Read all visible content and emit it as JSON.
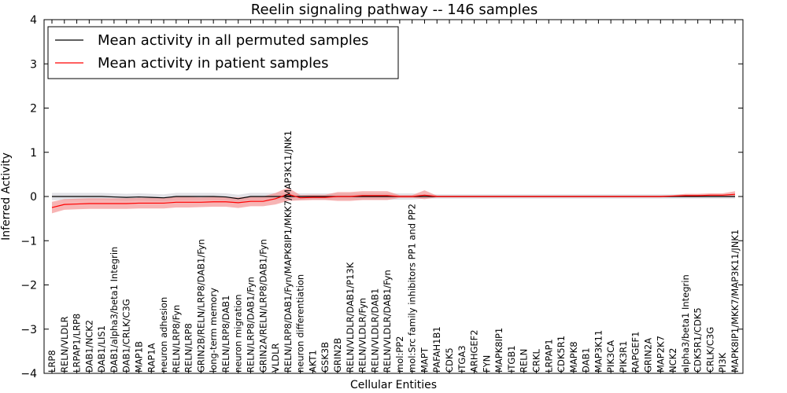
{
  "chart_data": {
    "type": "line",
    "title": "Reelin signaling pathway -- 146 samples",
    "xlabel": "Cellular Entities",
    "ylabel": "Inferred Activity",
    "ylim": [
      -4,
      4
    ],
    "yticks": [
      -4,
      -3,
      -2,
      -1,
      0,
      1,
      2,
      3,
      4
    ],
    "ytick_labels": [
      "−4",
      "−3",
      "−2",
      "−1",
      "0",
      "1",
      "2",
      "3",
      "4"
    ],
    "legend_position": "top-left",
    "categories": [
      "LRP8",
      "RELN/VLDLR",
      "LRPAP1/LRP8",
      "DAB1/NCK2",
      "DAB1/LIS1",
      "DAB1/alpha3/beta1 Integrin",
      "DAB1/CRLK/C3G",
      "MAP1B",
      "RAP1A",
      "neuron adhesion",
      "RELN/LRP8/Fyn",
      "RELN/LRP8",
      "GRIN2B/RELN/LRP8/DAB1/Fyn",
      "long-term memory",
      "RELN/LRP8/DAB1",
      "neuron migration",
      "RELN/LRP8/DAB1/Fyn",
      "GRIN2A/RELN/LRP8/DAB1/Fyn",
      "VLDLR",
      "RELN/LRP8/DAB1/Fyn/MAPK8IP1/MKK7/MAP3K11/JNK1",
      "neuron differentiation",
      "AKT1",
      "GSK3B",
      "GRIN2B",
      "RELN/VLDLR/DAB1/P13K",
      "RELN/VLDLR/Fyn",
      "RELN/VLDLR/DAB1",
      "RELN/VLDLR/DAB1/Fyn",
      "mol:PP2",
      "mol:Src family inhibitors PP1 and PP2",
      "MAPT",
      "PAFAH1B1",
      "CDK5",
      "ITGA3",
      "ARHGEF2",
      "FYN",
      "MAPK8IP1",
      "ITGB1",
      "RELN",
      "CRKL",
      "LRPAP1",
      "CDK5R1",
      "MAPK8",
      "DAB1",
      "MAP3K11",
      "PIK3CA",
      "PIK3R1",
      "RAPGEF1",
      "GRIN2A",
      "MAP2K7",
      "NCK2",
      "alpha3/beta1 Integrin",
      "CDK5R1/CDK5",
      "CRLK/C3G",
      "PI3K",
      "MAPK8IP1/MKK7/MAP3K11/JNK1"
    ],
    "series": [
      {
        "name": "Mean activity in all permuted samples",
        "color": "#000000",
        "band_color": "#c8c8d2",
        "values": [
          0,
          0,
          0,
          0,
          0,
          -0.01,
          -0.02,
          -0.01,
          -0.02,
          -0.03,
          0,
          0,
          0,
          0,
          -0.01,
          -0.05,
          0,
          0,
          0,
          0,
          0,
          0,
          0,
          0,
          0,
          0,
          0,
          0,
          0,
          0,
          0,
          0,
          0,
          0,
          0,
          0,
          0,
          0,
          0,
          0,
          0,
          0,
          0,
          0,
          0,
          0,
          0,
          0,
          0,
          0,
          0,
          0,
          0,
          0,
          0,
          0
        ],
        "lower": [
          -0.08,
          -0.08,
          -0.08,
          -0.08,
          -0.08,
          -0.09,
          -0.1,
          -0.09,
          -0.1,
          -0.11,
          -0.08,
          -0.08,
          -0.08,
          -0.08,
          -0.09,
          -0.12,
          -0.08,
          -0.08,
          -0.08,
          -0.08,
          -0.07,
          -0.07,
          -0.07,
          -0.07,
          -0.07,
          -0.07,
          -0.07,
          -0.07,
          -0.07,
          -0.07,
          -0.05,
          -0.05,
          -0.05,
          -0.05,
          -0.05,
          -0.05,
          -0.05,
          -0.05,
          -0.05,
          -0.05,
          -0.05,
          -0.05,
          -0.05,
          -0.05,
          -0.05,
          -0.05,
          -0.05,
          -0.05,
          -0.05,
          -0.05,
          -0.05,
          -0.05,
          -0.05,
          -0.05,
          -0.05,
          -0.05
        ],
        "upper": [
          0.08,
          0.08,
          0.08,
          0.08,
          0.08,
          0.07,
          0.06,
          0.07,
          0.06,
          0.05,
          0.08,
          0.08,
          0.08,
          0.08,
          0.07,
          0.04,
          0.08,
          0.08,
          0.08,
          0.08,
          0.07,
          0.07,
          0.07,
          0.07,
          0.07,
          0.07,
          0.07,
          0.07,
          0.07,
          0.07,
          0.05,
          0.05,
          0.05,
          0.05,
          0.05,
          0.05,
          0.05,
          0.05,
          0.05,
          0.05,
          0.05,
          0.05,
          0.05,
          0.05,
          0.05,
          0.05,
          0.05,
          0.05,
          0.05,
          0.05,
          0.05,
          0.05,
          0.05,
          0.05,
          0.05,
          0.05
        ]
      },
      {
        "name": "Mean activity in patient samples",
        "color": "#ff0000",
        "band_color": "#f28c8c",
        "values": [
          -0.25,
          -0.18,
          -0.17,
          -0.16,
          -0.16,
          -0.16,
          -0.16,
          -0.15,
          -0.15,
          -0.15,
          -0.13,
          -0.13,
          -0.13,
          -0.12,
          -0.12,
          -0.14,
          -0.11,
          -0.11,
          -0.05,
          0.05,
          -0.03,
          -0.02,
          -0.02,
          0.0,
          0.0,
          0.02,
          0.02,
          0.02,
          0.0,
          0.0,
          0.03,
          0.0,
          0.0,
          0.0,
          0.0,
          0.0,
          0.0,
          0.0,
          0.0,
          0.0,
          0.0,
          0.0,
          0.0,
          0.0,
          0.0,
          0.0,
          0.0,
          0.0,
          0.0,
          0.0,
          0.01,
          0.02,
          0.02,
          0.03,
          0.03,
          0.05
        ],
        "lower": [
          -0.38,
          -0.3,
          -0.29,
          -0.28,
          -0.28,
          -0.28,
          -0.28,
          -0.27,
          -0.27,
          -0.27,
          -0.25,
          -0.25,
          -0.24,
          -0.23,
          -0.23,
          -0.26,
          -0.22,
          -0.22,
          -0.18,
          -0.1,
          -0.09,
          -0.08,
          -0.08,
          -0.1,
          -0.1,
          -0.08,
          -0.08,
          -0.08,
          -0.03,
          -0.03,
          -0.06,
          -0.02,
          -0.02,
          -0.02,
          -0.02,
          -0.02,
          -0.02,
          -0.02,
          -0.02,
          -0.02,
          -0.02,
          -0.02,
          -0.02,
          -0.02,
          -0.02,
          -0.02,
          -0.02,
          -0.02,
          -0.02,
          -0.02,
          -0.01,
          0.0,
          0.0,
          0.0,
          0.0,
          0.0
        ],
        "upper": [
          -0.12,
          -0.06,
          -0.05,
          -0.04,
          -0.04,
          -0.04,
          -0.04,
          -0.03,
          -0.03,
          -0.03,
          -0.01,
          -0.01,
          -0.02,
          -0.01,
          -0.01,
          -0.02,
          0.0,
          0.0,
          0.08,
          0.2,
          0.03,
          0.04,
          0.04,
          0.1,
          0.1,
          0.12,
          0.12,
          0.12,
          0.03,
          0.03,
          0.14,
          0.02,
          0.02,
          0.02,
          0.02,
          0.02,
          0.02,
          0.02,
          0.02,
          0.02,
          0.02,
          0.02,
          0.02,
          0.02,
          0.02,
          0.02,
          0.02,
          0.02,
          0.02,
          0.02,
          0.03,
          0.06,
          0.06,
          0.07,
          0.07,
          0.12
        ]
      }
    ]
  }
}
